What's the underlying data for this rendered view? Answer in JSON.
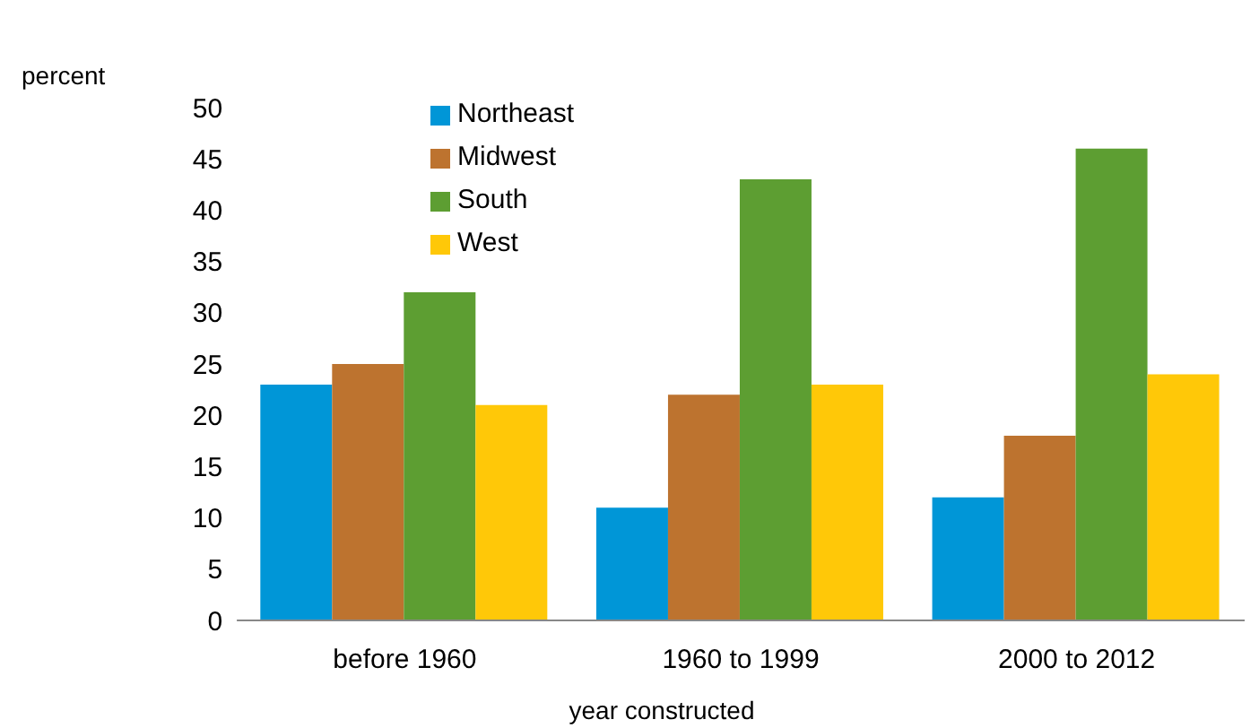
{
  "chart_data": {
    "type": "bar",
    "ylabel": "percent",
    "xlabel": "year constructed",
    "categories": [
      "before 1960",
      "1960 to 1999",
      "2000 to 2012"
    ],
    "series": [
      {
        "name": "Northeast",
        "color": "#0096d7",
        "values": [
          23,
          11,
          12
        ]
      },
      {
        "name": "Midwest",
        "color": "#bd732f",
        "values": [
          25,
          22,
          18
        ]
      },
      {
        "name": "South",
        "color": "#5d9e32",
        "values": [
          32,
          43,
          46
        ]
      },
      {
        "name": "West",
        "color": "#ffc808",
        "values": [
          21,
          23,
          24
        ]
      }
    ],
    "ylim": [
      0,
      50
    ],
    "yticks": [
      0,
      5,
      10,
      15,
      20,
      25,
      30,
      35,
      40,
      45,
      50
    ],
    "grid": false,
    "legend": "top left"
  }
}
